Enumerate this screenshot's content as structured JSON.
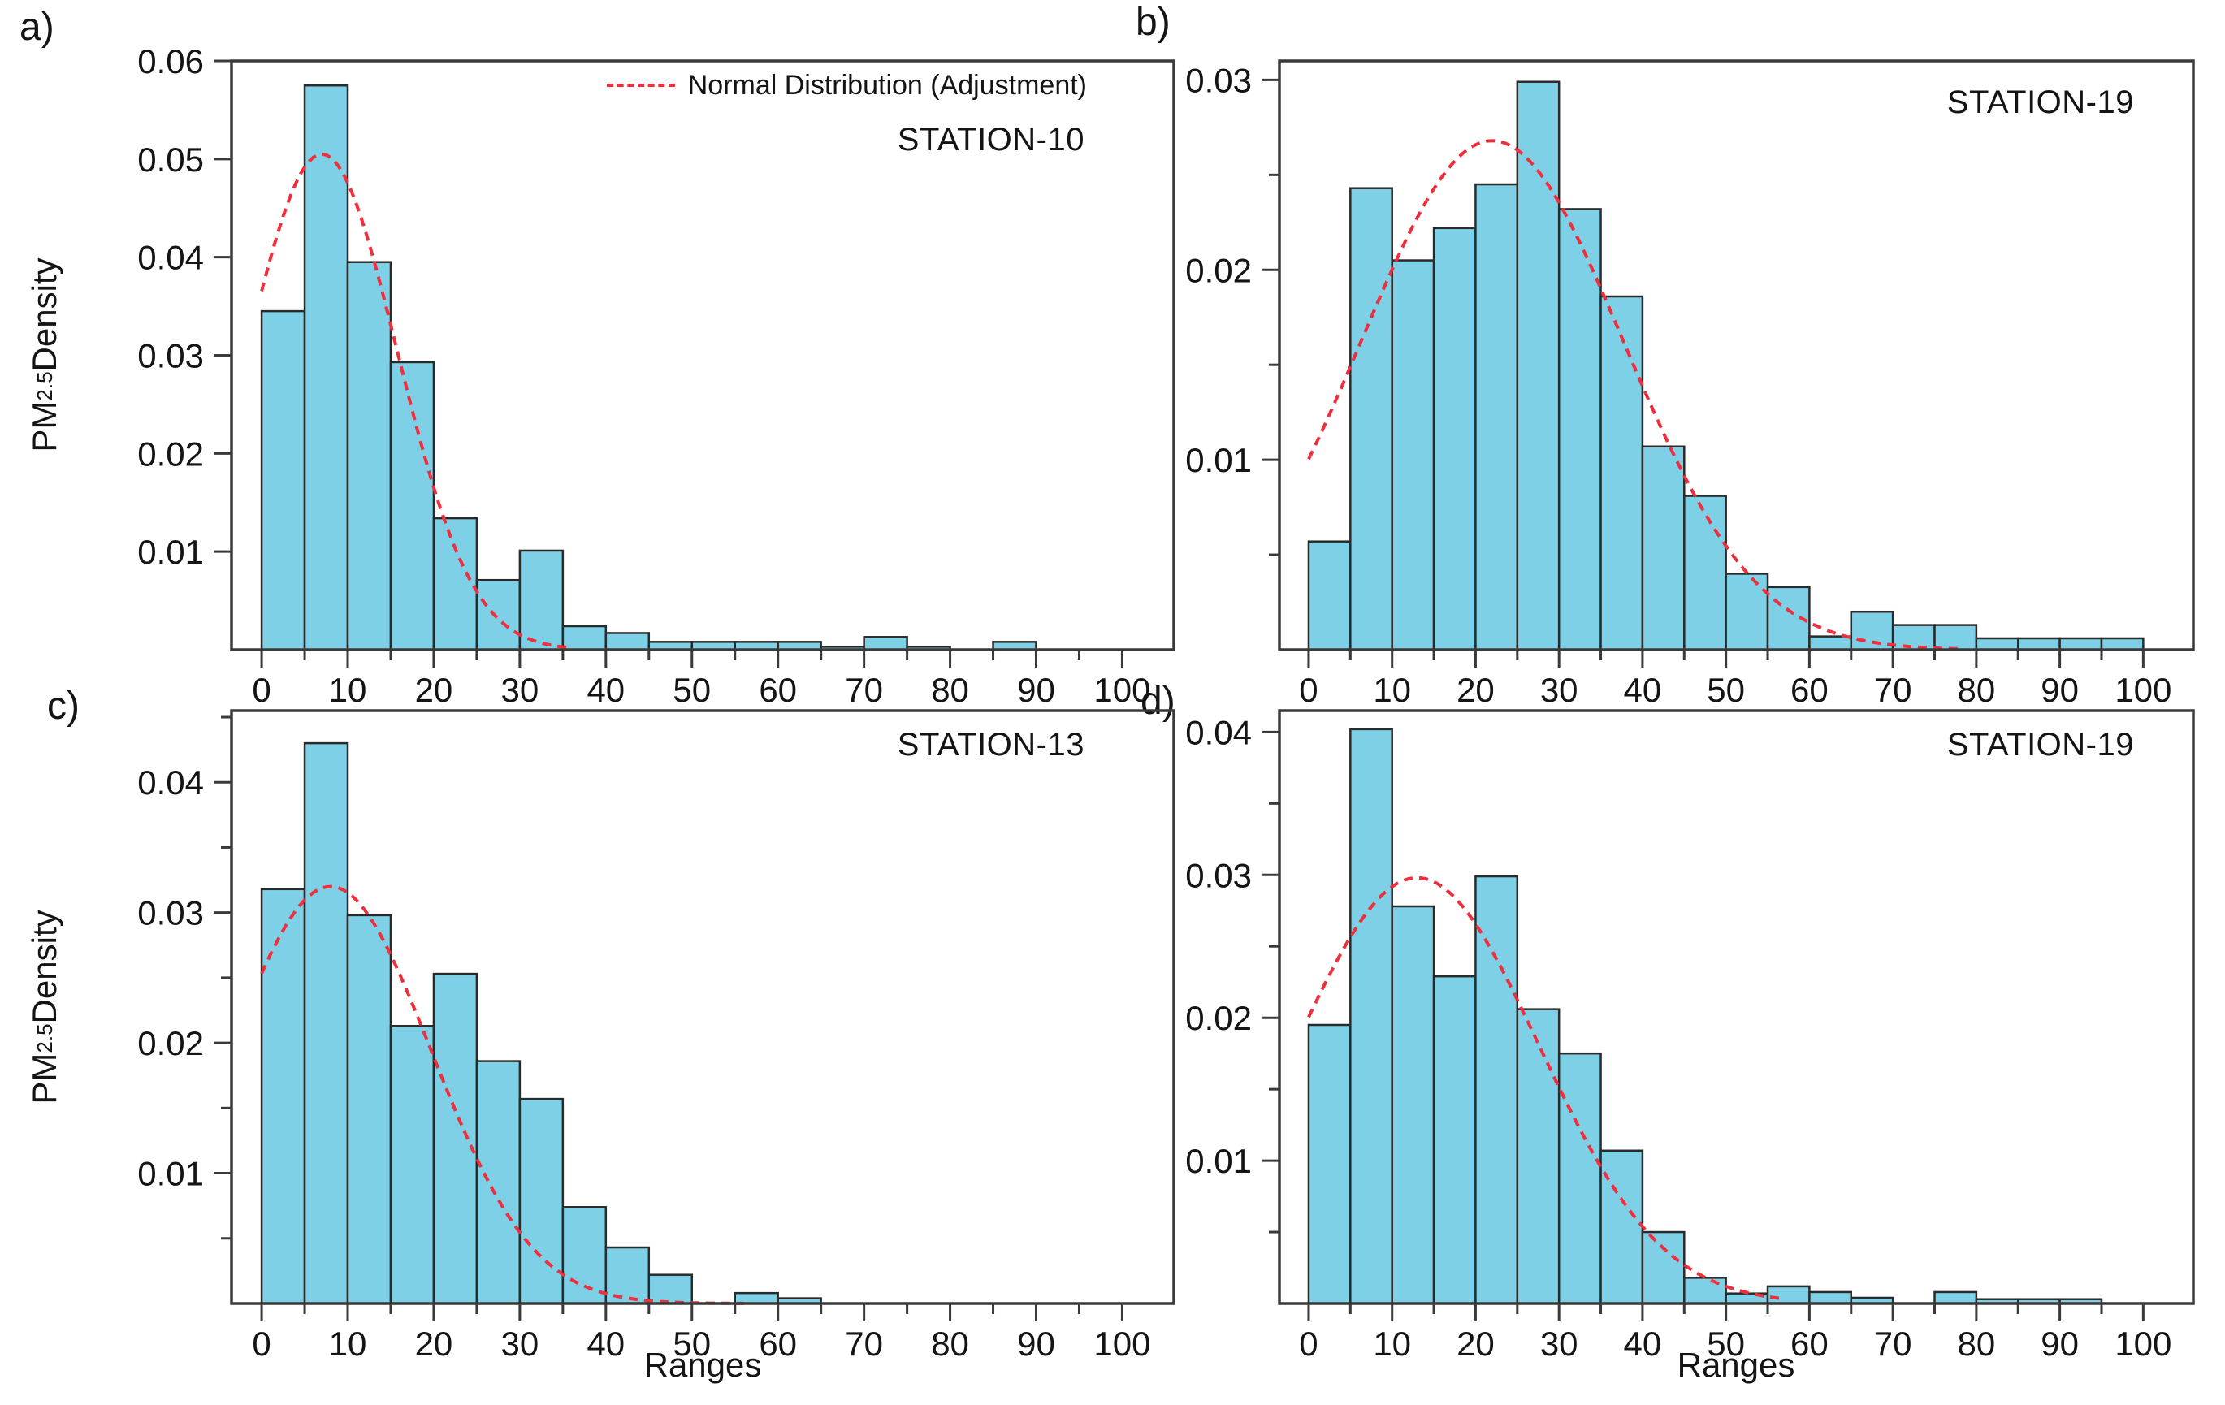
{
  "figure": {
    "ylabel": "PM2.5 Density",
    "ylabel_subscript": "2.5",
    "xlabel": "Ranges",
    "legend": {
      "label": "Normal Distribution (Adjustment)"
    },
    "colors": {
      "bar_fill": "#7ed0e6",
      "bar_stroke": "#2a2a2a",
      "curve": "#ee2f3d",
      "axis": "#3a3a3a",
      "text": "#141414",
      "background": "#ffffff"
    }
  },
  "chart_data": [
    {
      "id": "a",
      "label": "a)",
      "type": "bar",
      "station": "STATION-10",
      "bin_start": 0,
      "bin_width": 5,
      "values": [
        0.0345,
        0.0575,
        0.0395,
        0.0293,
        0.0134,
        0.0071,
        0.0101,
        0.0024,
        0.0017,
        0.0008,
        0.0008,
        0.0008,
        0.0008,
        0.0003,
        0.0013,
        0.0003,
        0,
        0.0008,
        0,
        0
      ],
      "ylim": [
        0,
        0.06
      ],
      "ytick_step": 0.01,
      "yminor_step": null,
      "xlim": [
        -3.5,
        106
      ],
      "x_max_tick": 100,
      "xtick_step": 10,
      "xminor_step": 5,
      "normal_curve": {
        "mean": 7,
        "sd": 8.7,
        "peak": 0.0505,
        "x_range": [
          0,
          36
        ]
      },
      "has_legend": true
    },
    {
      "id": "b",
      "label": "b)",
      "type": "bar",
      "station": "STATION-19",
      "bin_start": 0,
      "bin_width": 5,
      "values": [
        0.0057,
        0.0243,
        0.0205,
        0.0222,
        0.0245,
        0.0299,
        0.0232,
        0.0186,
        0.0107,
        0.0081,
        0.004,
        0.0033,
        0.0007,
        0.002,
        0.0013,
        0.0013,
        0.0006,
        0.0006,
        0.0006,
        0.0006
      ],
      "ylim": [
        0,
        0.031
      ],
      "ytick_step": 0.01,
      "yminor_step": 0.005,
      "xlim": [
        -3.5,
        106
      ],
      "x_max_tick": 100,
      "xtick_step": 10,
      "xminor_step": 5,
      "normal_curve": {
        "mean": 22,
        "sd": 15.7,
        "peak": 0.0268,
        "x_range": [
          0,
          78
        ]
      },
      "has_legend": false
    },
    {
      "id": "c",
      "label": "c)",
      "type": "bar",
      "station": "STATION-13",
      "bin_start": 0,
      "bin_width": 5,
      "values": [
        0.0318,
        0.043,
        0.0298,
        0.0213,
        0.0253,
        0.0186,
        0.0157,
        0.0074,
        0.0043,
        0.0022,
        0,
        0.0008,
        0.0004,
        0,
        0,
        0,
        0,
        0,
        0,
        0
      ],
      "ylim": [
        0,
        0.0455
      ],
      "ytick_step": 0.01,
      "yminor_step": 0.005,
      "xlim": [
        -3.5,
        106
      ],
      "x_max_tick": 100,
      "xtick_step": 10,
      "xminor_step": 5,
      "normal_curve": {
        "mean": 8,
        "sd": 11.7,
        "peak": 0.032,
        "x_range": [
          0,
          56
        ]
      },
      "has_legend": false
    },
    {
      "id": "d",
      "label": "d)",
      "type": "bar",
      "station": "STATION-19",
      "bin_start": 0,
      "bin_width": 5,
      "values": [
        0.0195,
        0.0402,
        0.0278,
        0.0229,
        0.0299,
        0.0206,
        0.0175,
        0.0107,
        0.005,
        0.0018,
        0.0007,
        0.0012,
        0.0008,
        0.0004,
        0,
        0.0008,
        0.0003,
        0.0003,
        0.0003,
        0
      ],
      "ylim": [
        0,
        0.0415
      ],
      "ytick_step": 0.01,
      "yminor_step": 0.005,
      "xlim": [
        -3.5,
        106
      ],
      "x_max_tick": 100,
      "xtick_step": 10,
      "xminor_step": 5,
      "normal_curve": {
        "mean": 13,
        "sd": 14.6,
        "peak": 0.0298,
        "x_range": [
          0,
          57
        ]
      },
      "has_legend": false
    }
  ]
}
